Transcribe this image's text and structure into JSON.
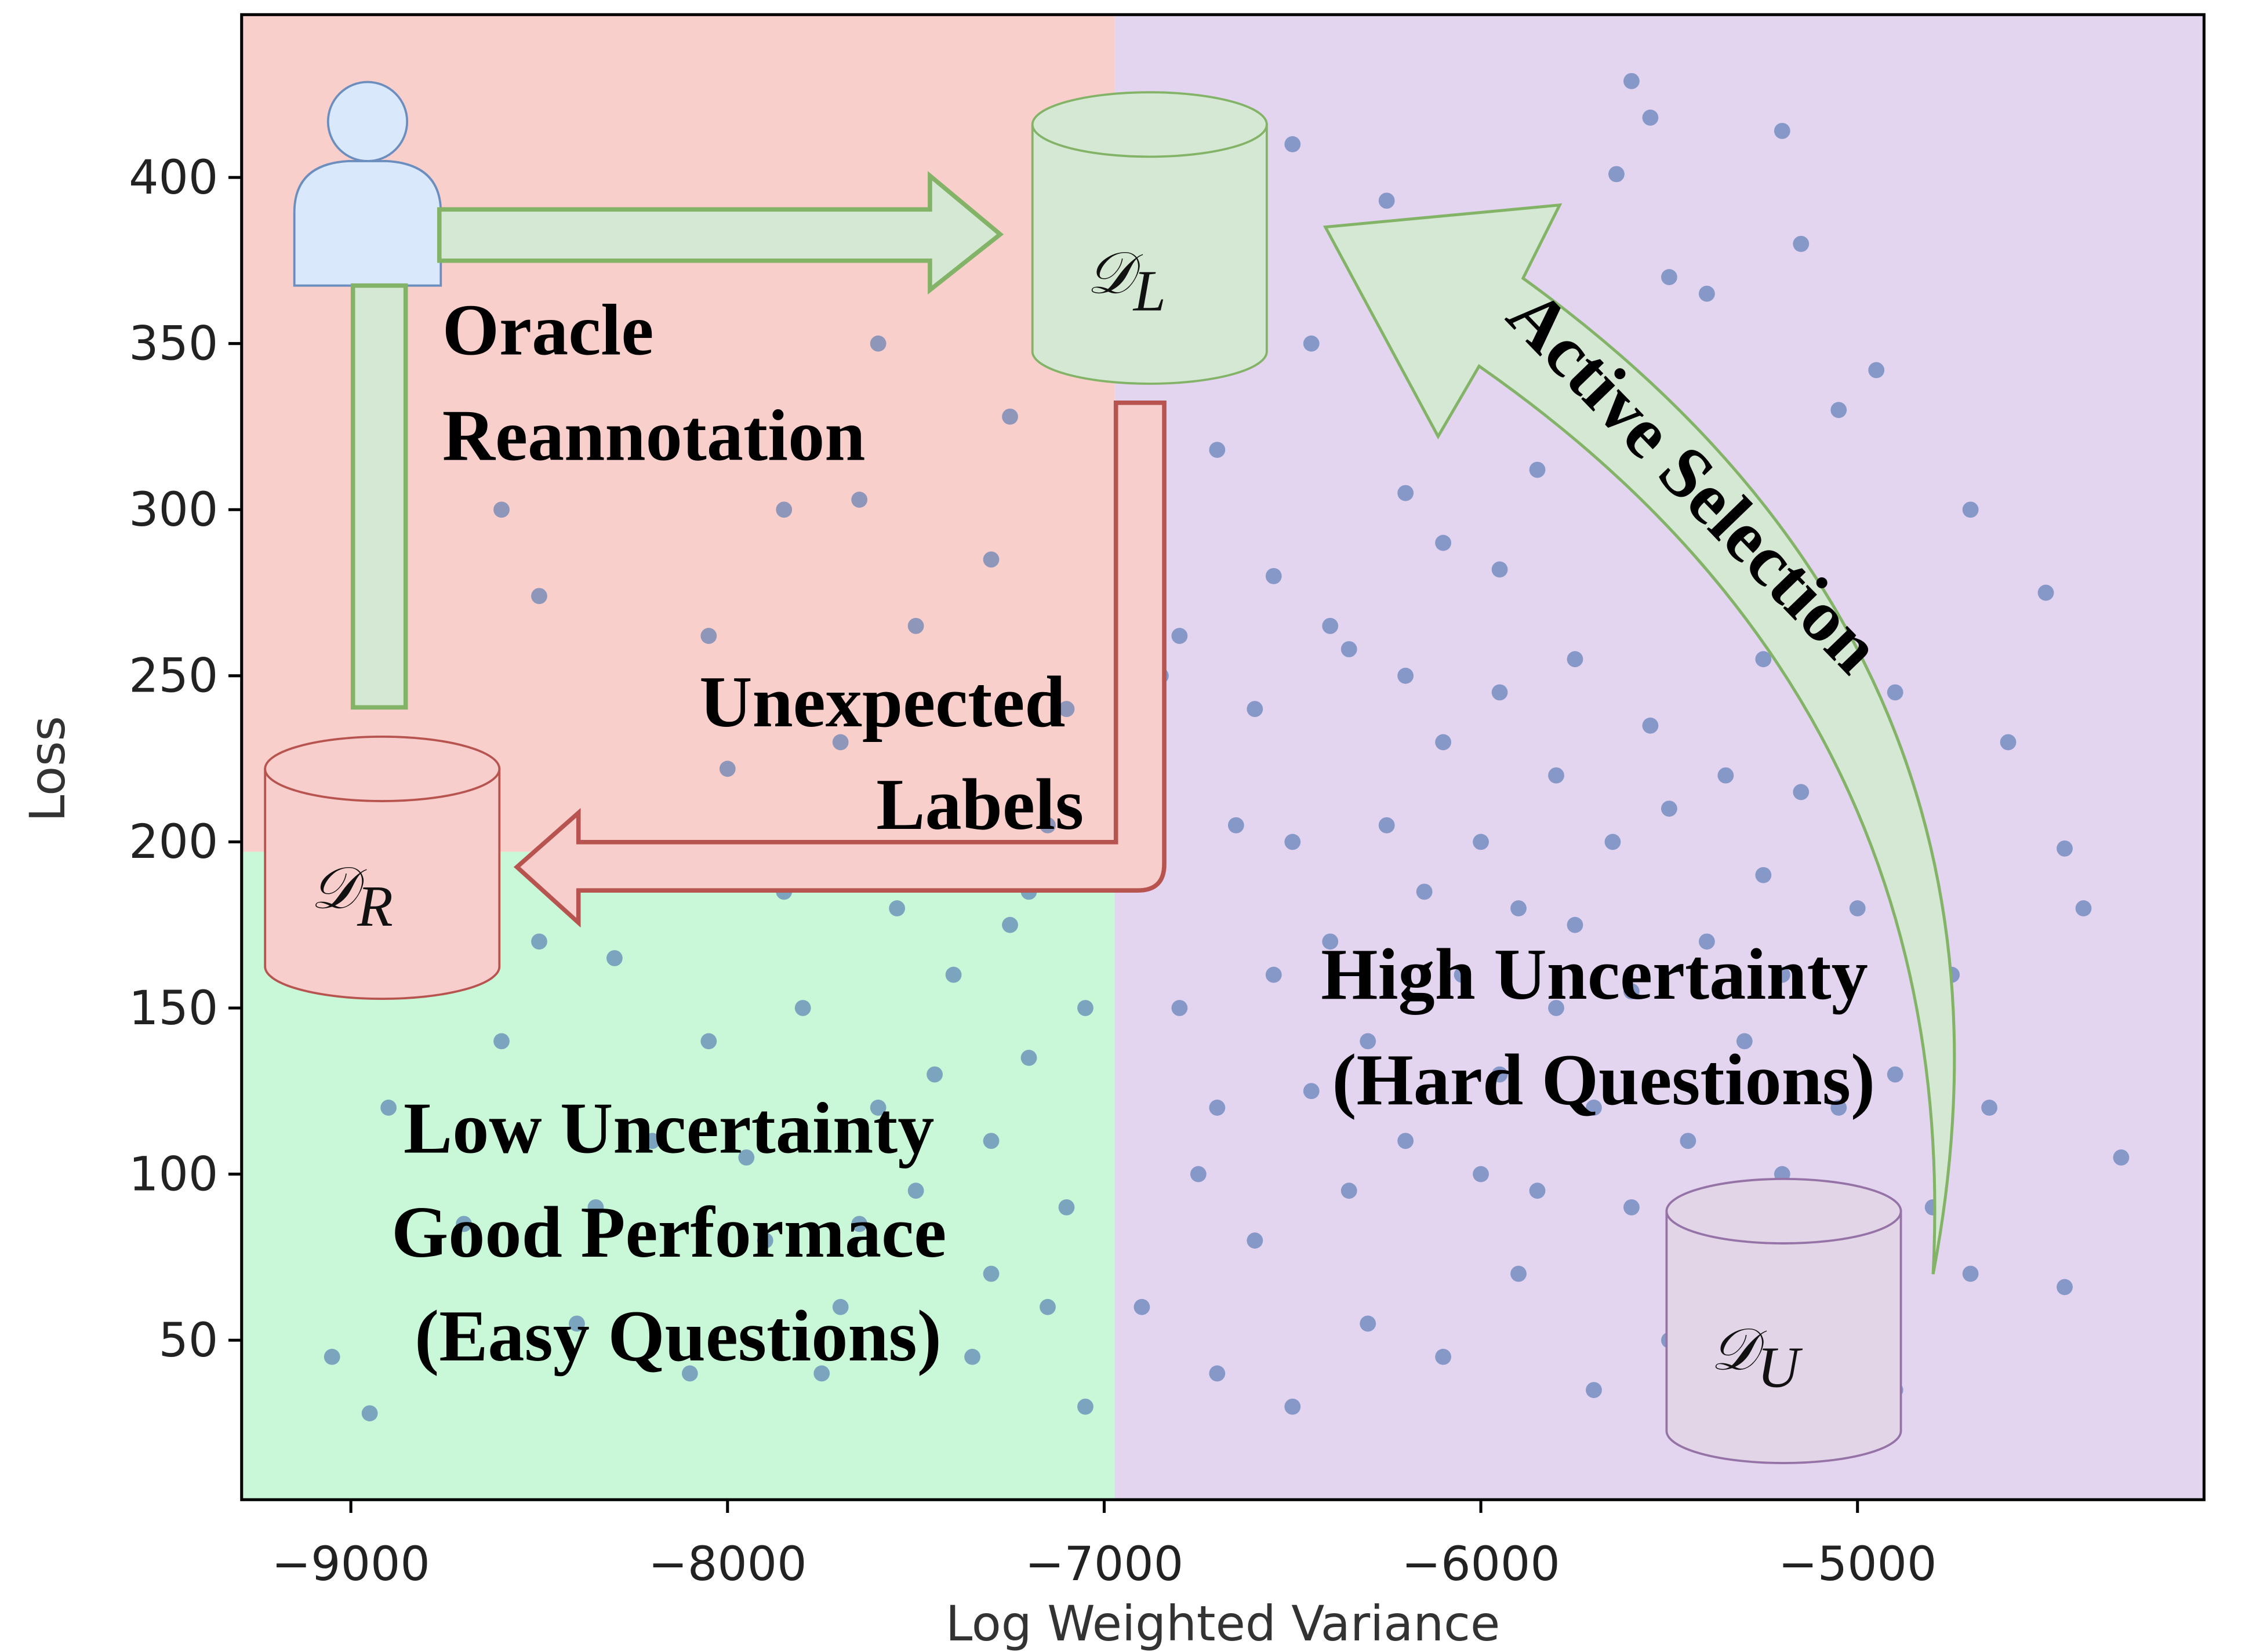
{
  "chart_data": {
    "type": "scatter",
    "x_label": "Log Weighted Variance",
    "y_label": "Loss",
    "xlim": [
      -9290,
      -4080
    ],
    "ylim": [
      2,
      449
    ],
    "xticks": [
      {
        "value": -9000,
        "label": "−9000"
      },
      {
        "value": -8000,
        "label": "−8000"
      },
      {
        "value": -7000,
        "label": "−7000"
      },
      {
        "value": -6000,
        "label": "−6000"
      },
      {
        "value": -5000,
        "label": "−5000"
      }
    ],
    "yticks": [
      50,
      100,
      150,
      200,
      250,
      300,
      350,
      400
    ],
    "regions": [
      {
        "x": [
          -9290,
          -6972
        ],
        "y": [
          197,
          449
        ],
        "color": "#f9cfcb"
      },
      {
        "x": [
          -9290,
          -6972
        ],
        "y": [
          2,
          197
        ],
        "color": "#c8f8d8"
      },
      {
        "x": [
          -6972,
          -4080
        ],
        "y": [
          2,
          449
        ],
        "color": "#e3d4f0"
      }
    ],
    "series": [
      {
        "color": "#4c72b0",
        "x": [
          -5600,
          -5550,
          -5200,
          -6500,
          -5640,
          -6250,
          -5150,
          -5500,
          -5400,
          -6450,
          -4950,
          -5050,
          -5700,
          -6700,
          -5850,
          -6200,
          -6100,
          -5950,
          -5400,
          -4700,
          -4500,
          -6550,
          -6800,
          -6350,
          -5250,
          -4900,
          -4600,
          -4450,
          -4400,
          -4300,
          -4450,
          -7600,
          -7250,
          -7650,
          -8600,
          -8500,
          -7300,
          -7500,
          -8050,
          -7850,
          -7100,
          -7700,
          -8000,
          -7400,
          -7150,
          -8500,
          -8300,
          -8050,
          -7800,
          -7600,
          -7400,
          -7300,
          -7200,
          -7100,
          -7050,
          -7300,
          -7500,
          -7700,
          -7900,
          -8100,
          -8400,
          -8700,
          -8900,
          -9050,
          -8950,
          -8600,
          -8200,
          -7950,
          -7650,
          -7350,
          -7150,
          -7450,
          -7250,
          -7550,
          -7850,
          -8350,
          -7750,
          -7050,
          -7200,
          -6900,
          -6800,
          -6700,
          -6600,
          -6500,
          -6400,
          -6300,
          -6200,
          -6100,
          -6000,
          -5900,
          -5800,
          -5700,
          -5600,
          -5500,
          -5400,
          -5300,
          -5200,
          -5100,
          -5000,
          -4900,
          -4800,
          -6900,
          -6700,
          -6500,
          -6300,
          -6100,
          -5900,
          -5700,
          -5500,
          -5300,
          -5100,
          -4900,
          -6850,
          -6600,
          -6400,
          -6200,
          -5950,
          -5750,
          -5550,
          -5350,
          -5150,
          -4950,
          -4750,
          -4650,
          -4700,
          -6750,
          -6550,
          -6350,
          -6150,
          -5950,
          -5850,
          -5650,
          -5450,
          -5250,
          -5050,
          -6450,
          -6050,
          -5750,
          -5350,
          -6250,
          -6650,
          -5800,
          -6000,
          -5600,
          -5200
        ],
        "values": [
          429,
          418,
          414,
          410,
          401,
          393,
          380,
          370,
          365,
          350,
          342,
          330,
          322,
          318,
          312,
          305,
          290,
          282,
          300,
          300,
          275,
          280,
          262,
          258,
          255,
          245,
          230,
          198,
          180,
          105,
          66,
          350,
          328,
          303,
          300,
          274,
          285,
          265,
          262,
          300,
          240,
          230,
          222,
          190,
          205,
          170,
          165,
          140,
          150,
          120,
          160,
          110,
          135,
          90,
          150,
          70,
          95,
          60,
          80,
          40,
          55,
          85,
          120,
          45,
          28,
          140,
          110,
          105,
          85,
          45,
          60,
          130,
          175,
          180,
          185,
          90,
          40,
          30,
          185,
          190,
          150,
          120,
          80,
          200,
          170,
          140,
          110,
          230,
          200,
          180,
          150,
          120,
          90,
          210,
          170,
          140,
          100,
          60,
          180,
          130,
          90,
          60,
          40,
          30,
          55,
          45,
          70,
          35,
          50,
          30,
          40,
          35,
          250,
          240,
          265,
          250,
          245,
          255,
          235,
          220,
          215,
          205,
          160,
          120,
          70,
          100,
          160,
          95,
          185,
          130,
          95,
          200,
          110,
          190,
          120,
          125,
          160,
          175,
          80,
          205,
          205,
          220,
          100,
          155,
          160
        ]
      }
    ],
    "datasets": [
      {
        "symbol": "𝒟",
        "sub": "L"
      },
      {
        "symbol": "𝒟",
        "sub": "R"
      },
      {
        "symbol": "𝒟",
        "sub": "U"
      }
    ],
    "annotations": [
      {
        "lines": [
          "Oracle",
          "Reannotation"
        ]
      },
      {
        "lines": [
          "Unexpected",
          "Labels"
        ]
      },
      {
        "lines": [
          "High Uncertainty",
          "(Hard Questions)"
        ]
      },
      {
        "lines": [
          "Low Uncertainty",
          "Good Performace",
          "(Easy Questions)"
        ]
      },
      {
        "lines": [
          "Active Selection"
        ]
      }
    ]
  }
}
